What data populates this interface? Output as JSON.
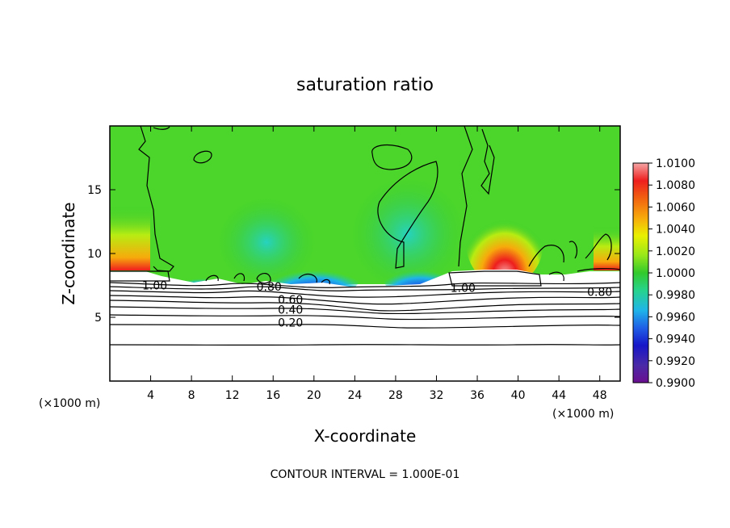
{
  "chart_data": {
    "type": "heatmap",
    "title": "saturation ratio",
    "xlabel": "X-coordinate",
    "ylabel": "Z-coordinate",
    "x_unit": "(×1000 m)",
    "xlim": [
      0,
      50
    ],
    "ylim": [
      0,
      20
    ],
    "x_ticks": [
      4,
      8,
      12,
      16,
      20,
      24,
      28,
      32,
      36,
      40,
      44,
      48
    ],
    "y_ticks": [
      5,
      10,
      15
    ],
    "colorbar": {
      "min": 0.99,
      "max": 1.01,
      "tick_labels": [
        "1.0100",
        "1.0080",
        "1.0060",
        "1.0040",
        "1.0020",
        "1.0000",
        "0.9980",
        "0.9960",
        "0.9940",
        "0.9920",
        "0.9900"
      ],
      "colors": [
        "#f5a6a6",
        "#ee1e1e",
        "#f26a0f",
        "#f7aa0c",
        "#eaf000",
        "#98e81b",
        "#33c92c",
        "#26d38d",
        "#1fb5e8",
        "#1f5fe6",
        "#1717c8",
        "#4a2aa8",
        "#6a0f8f"
      ]
    },
    "contour_labels": [
      {
        "text": "1.00",
        "x": 4.4,
        "z": 7.5
      },
      {
        "text": "0.80",
        "x": 15.6,
        "z": 7.4
      },
      {
        "text": "0.60",
        "x": 17.7,
        "z": 6.4
      },
      {
        "text": "0.40",
        "x": 17.7,
        "z": 5.6
      },
      {
        "text": "0.20",
        "x": 17.7,
        "z": 4.6
      },
      {
        "text": "1.00",
        "x": 34.6,
        "z": 7.3
      },
      {
        "text": "0.80",
        "x": 48.0,
        "z": 7.0
      }
    ],
    "contour_interval_note": "CONTOUR INTERVAL = 1.000E-01"
  }
}
